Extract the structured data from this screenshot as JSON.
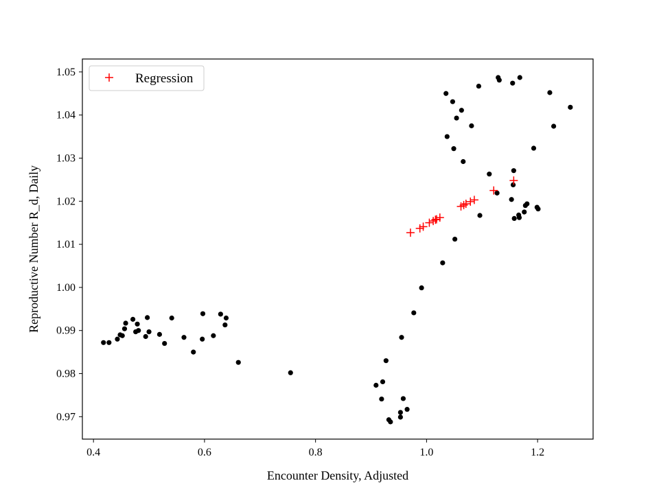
{
  "chart_data": {
    "type": "scatter",
    "title": "",
    "xlabel": "Encounter Density, Adjusted",
    "ylabel": "Reproductive Number R_d, Daily",
    "xlim": [
      0.38,
      1.3
    ],
    "ylim": [
      0.9648,
      1.053
    ],
    "xticks": [
      0.4,
      0.6,
      0.8,
      1.0,
      1.2
    ],
    "xtick_labels": [
      "0.4",
      "0.6",
      "0.8",
      "1.0",
      "1.2"
    ],
    "yticks": [
      0.97,
      0.98,
      0.99,
      1.0,
      1.01,
      1.02,
      1.03,
      1.04,
      1.05
    ],
    "ytick_labels": [
      "0.97",
      "0.98",
      "0.99",
      "1.00",
      "1.01",
      "1.02",
      "1.03",
      "1.04",
      "1.05"
    ],
    "grid": false,
    "legend": {
      "position": "top-left",
      "entries": [
        "Regression"
      ]
    },
    "series": [
      {
        "marker": "dot",
        "color": "#000000",
        "x": [
          0.418,
          0.428,
          0.443,
          0.448,
          0.452,
          0.456,
          0.458,
          0.471,
          0.476,
          0.479,
          0.481,
          0.494,
          0.497,
          0.5,
          0.519,
          0.528,
          0.541,
          0.563,
          0.58,
          0.596,
          0.597,
          0.616,
          0.629,
          0.637,
          0.639,
          0.661,
          0.755,
          0.909,
          0.919,
          0.921,
          0.927,
          0.932,
          0.935,
          0.953,
          0.953,
          0.955,
          0.958,
          0.965,
          0.977,
          0.991,
          1.029,
          1.035,
          1.037,
          1.047,
          1.049,
          1.051,
          1.054,
          1.063,
          1.066,
          1.081,
          1.094,
          1.096,
          1.113,
          1.127,
          1.129,
          1.131,
          1.153,
          1.155,
          1.156,
          1.157,
          1.158,
          1.166,
          1.167,
          1.168,
          1.176,
          1.178,
          1.181,
          1.193,
          1.199,
          1.201,
          1.222,
          1.229,
          1.259
        ],
        "y": [
          0.9872,
          0.9872,
          0.988,
          0.989,
          0.9888,
          0.9904,
          0.9917,
          0.9926,
          0.9897,
          0.9915,
          0.99,
          0.9886,
          0.993,
          0.9897,
          0.9891,
          0.987,
          0.9929,
          0.9884,
          0.985,
          0.988,
          0.9939,
          0.9888,
          0.9938,
          0.9913,
          0.9929,
          0.9826,
          0.9802,
          0.9773,
          0.9741,
          0.9781,
          0.983,
          0.9693,
          0.9688,
          0.9699,
          0.971,
          0.9884,
          0.9742,
          0.9717,
          0.9941,
          0.9999,
          1.0057,
          1.045,
          1.035,
          1.0431,
          1.0322,
          1.0112,
          1.0393,
          1.0411,
          1.0292,
          1.0375,
          1.0467,
          1.0167,
          1.0263,
          1.0219,
          1.0487,
          1.0481,
          1.0204,
          1.0474,
          1.0238,
          1.0271,
          1.016,
          1.0168,
          1.0162,
          1.0487,
          1.0175,
          1.019,
          1.0194,
          1.0323,
          1.0186,
          1.0182,
          1.0452,
          1.0374,
          1.0418
        ]
      },
      {
        "name": "Regression",
        "marker": "plus",
        "color": "#ff0000",
        "x": [
          0.971,
          0.988,
          0.994,
          1.005,
          1.012,
          1.016,
          1.018,
          1.024,
          1.062,
          1.067,
          1.071,
          1.079,
          1.086,
          1.121,
          1.157
        ],
        "y": [
          1.0127,
          1.0137,
          1.0141,
          1.015,
          1.0154,
          1.0157,
          1.0158,
          1.0162,
          1.0188,
          1.0191,
          1.0194,
          1.0199,
          1.0203,
          1.0225,
          1.0248
        ]
      }
    ]
  }
}
